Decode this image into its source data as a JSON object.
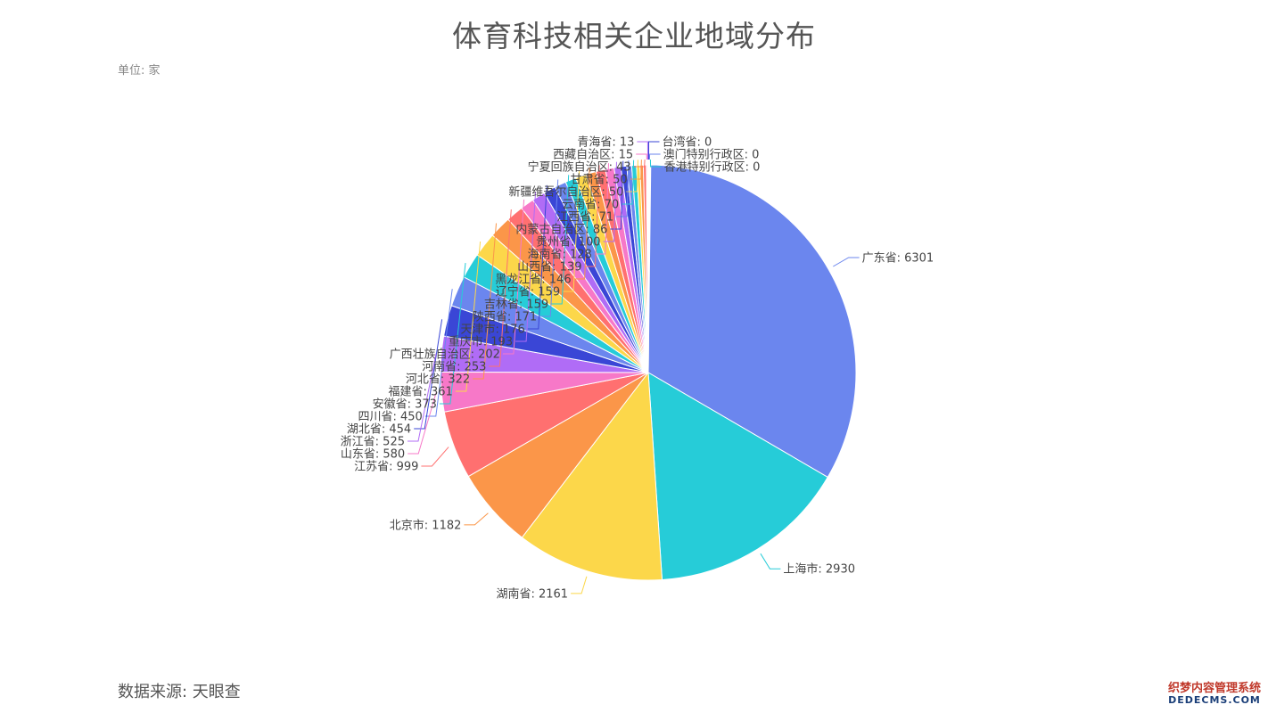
{
  "title": "体育科技相关企业地域分布",
  "unit": "单位: 家",
  "source": "数据来源: 天眼查",
  "watermark": {
    "line1": "织梦内容管理系统",
    "line2": "DEDECMS.COM"
  },
  "chart_data": {
    "type": "pie",
    "title": "体育科技相关企业地域分布",
    "slices": [
      {
        "label": "广东省",
        "value": 6301,
        "color": "#6b86ee"
      },
      {
        "label": "上海市",
        "value": 2930,
        "color": "#26ccd8"
      },
      {
        "label": "湖南省",
        "value": 2161,
        "color": "#fcd74a"
      },
      {
        "label": "北京市",
        "value": 1182,
        "color": "#fb9649"
      },
      {
        "label": "江苏省",
        "value": 999,
        "color": "#ff7070"
      },
      {
        "label": "山东省",
        "value": 580,
        "color": "#f778c8"
      },
      {
        "label": "浙江省",
        "value": 525,
        "color": "#b06cf6"
      },
      {
        "label": "湖北省",
        "value": 454,
        "color": "#3a46d6"
      },
      {
        "label": "四川省",
        "value": 450,
        "color": "#6b86ee"
      },
      {
        "label": "安徽省",
        "value": 373,
        "color": "#26ccd8"
      },
      {
        "label": "福建省",
        "value": 361,
        "color": "#fcd74a"
      },
      {
        "label": "河北省",
        "value": 322,
        "color": "#fb9649"
      },
      {
        "label": "河南省",
        "value": 253,
        "color": "#ff7070"
      },
      {
        "label": "广西壮族自治区",
        "value": 202,
        "color": "#f778c8"
      },
      {
        "label": "重庆市",
        "value": 193,
        "color": "#b06cf6"
      },
      {
        "label": "天津市",
        "value": 176,
        "color": "#3a46d6"
      },
      {
        "label": "陕西省",
        "value": 171,
        "color": "#6b86ee"
      },
      {
        "label": "吉林省",
        "value": 159,
        "color": "#26ccd8"
      },
      {
        "label": "辽宁省",
        "value": 159,
        "color": "#fcd74a"
      },
      {
        "label": "黑龙江省",
        "value": 146,
        "color": "#fb9649"
      },
      {
        "label": "山西省",
        "value": 139,
        "color": "#ff7070"
      },
      {
        "label": "海南省",
        "value": 128,
        "color": "#f778c8"
      },
      {
        "label": "贵州省",
        "value": 100,
        "color": "#b06cf6"
      },
      {
        "label": "内蒙古自治区",
        "value": 86,
        "color": "#3a46d6"
      },
      {
        "label": "江西省",
        "value": 71,
        "color": "#6b86ee"
      },
      {
        "label": "云南省",
        "value": 70,
        "color": "#26ccd8"
      },
      {
        "label": "新疆维吾尔自治区",
        "value": 50,
        "color": "#fcd74a"
      },
      {
        "label": "甘肃省",
        "value": 50,
        "color": "#fb9649"
      },
      {
        "label": "宁夏回族自治区",
        "value": 43,
        "color": "#ff7070"
      },
      {
        "label": "西藏自治区",
        "value": 15,
        "color": "#f778c8"
      },
      {
        "label": "青海省",
        "value": 13,
        "color": "#b06cf6"
      },
      {
        "label": "台湾省",
        "value": 0,
        "color": "#3a46d6"
      },
      {
        "label": "澳门特别行政区",
        "value": 0,
        "color": "#6b86ee"
      },
      {
        "label": "香港特别行政区",
        "value": 0,
        "color": "#26ccd8"
      }
    ]
  }
}
